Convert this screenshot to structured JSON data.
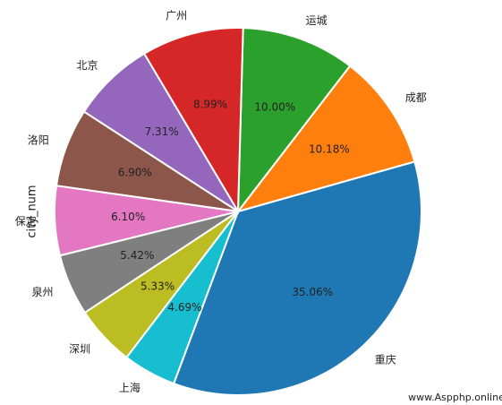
{
  "chart_data": {
    "type": "pie",
    "ylabel": "city_num",
    "categories": [
      "重庆",
      "成都",
      "运城",
      "广州",
      "北京",
      "洛阳",
      "保定",
      "泉州",
      "深圳",
      "上海"
    ],
    "values": [
      35.06,
      10.18,
      10.0,
      8.99,
      7.31,
      6.9,
      6.1,
      5.42,
      5.33,
      4.69
    ],
    "value_labels": [
      "35.06%",
      "10.18%",
      "10.00%",
      "8.99%",
      "7.31%",
      "6.90%",
      "6.10%",
      "5.42%",
      "5.33%",
      "4.69%"
    ],
    "colors": [
      "#1f77b4",
      "#ff7f0e",
      "#2ca02c",
      "#d62728",
      "#9467bd",
      "#8c564b",
      "#e377c2",
      "#7f7f7f",
      "#bcbd22",
      "#17becf"
    ]
  },
  "watermark": "www.Aspphp.online"
}
